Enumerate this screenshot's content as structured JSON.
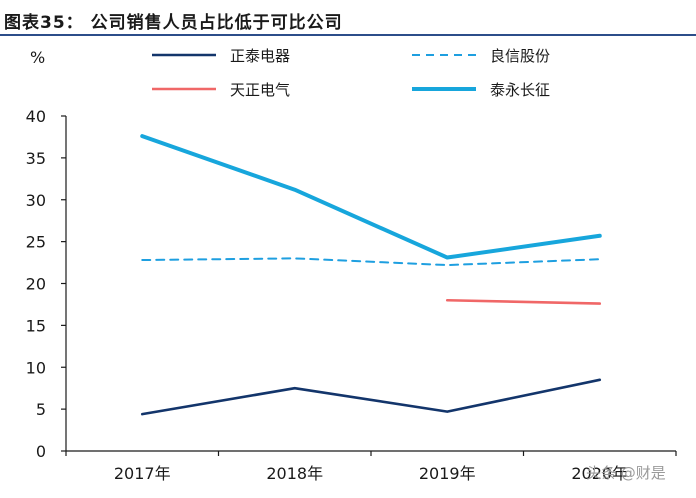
{
  "title": "图表35：  公司销售人员占比低于可比公司",
  "watermark": "头条 @财是",
  "colors": {
    "rule": "#2c4e8a",
    "axis": "#1a1a1a"
  },
  "chart_data": {
    "type": "line",
    "ylabel": "%",
    "ylim": [
      0,
      40
    ],
    "yticks": [
      0,
      5,
      10,
      15,
      20,
      25,
      30,
      35,
      40
    ],
    "categories": [
      "2017年",
      "2018年",
      "2019年",
      "2020年"
    ],
    "grid": false,
    "legend_position": "top",
    "series": [
      {
        "name": "正泰电器",
        "values": [
          4.4,
          7.5,
          4.7,
          8.5
        ],
        "color": "#13356b",
        "style": "solid"
      },
      {
        "name": "良信股份",
        "values": [
          22.8,
          23.0,
          22.2,
          22.9
        ],
        "color": "#1e9fe0",
        "style": "dashed"
      },
      {
        "name": "天正电气",
        "values": [
          null,
          null,
          18.0,
          17.6
        ],
        "color": "#f06767",
        "style": "solid"
      },
      {
        "name": "泰永长征",
        "values": [
          37.6,
          31.2,
          23.1,
          25.7
        ],
        "color": "#17a6dc",
        "style": "solid-thick"
      }
    ]
  }
}
